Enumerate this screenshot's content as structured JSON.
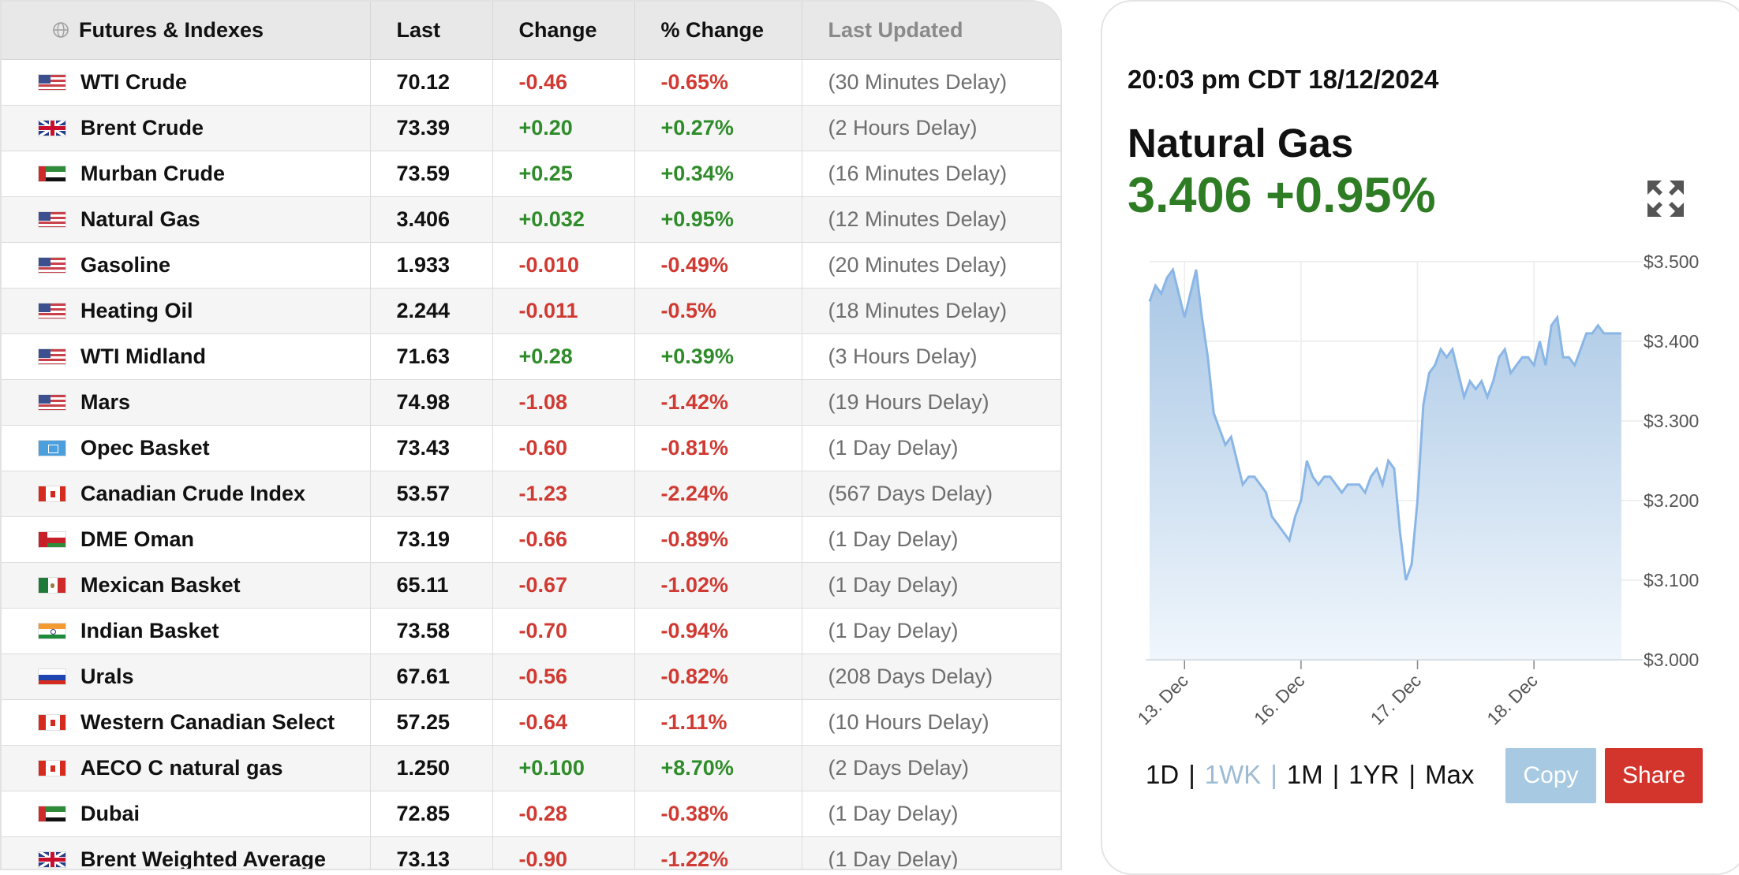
{
  "table": {
    "headers": [
      "Futures & Indexes",
      "Last",
      "Change",
      "% Change",
      "Last Updated"
    ],
    "rows": [
      {
        "flag": "us",
        "name": "WTI Crude",
        "last": "70.12",
        "change": "-0.46",
        "pct": "-0.65%",
        "updated": "(30 Minutes Delay)",
        "dir": "neg"
      },
      {
        "flag": "uk",
        "name": "Brent Crude",
        "last": "73.39",
        "change": "+0.20",
        "pct": "+0.27%",
        "updated": "(2 Hours Delay)",
        "dir": "pos"
      },
      {
        "flag": "ae",
        "name": "Murban Crude",
        "last": "73.59",
        "change": "+0.25",
        "pct": "+0.34%",
        "updated": "(16 Minutes Delay)",
        "dir": "pos"
      },
      {
        "flag": "us",
        "name": "Natural Gas",
        "last": "3.406",
        "change": "+0.032",
        "pct": "+0.95%",
        "updated": "(12 Minutes Delay)",
        "dir": "pos"
      },
      {
        "flag": "us",
        "name": "Gasoline",
        "last": "1.933",
        "change": "-0.010",
        "pct": "-0.49%",
        "updated": "(20 Minutes Delay)",
        "dir": "neg"
      },
      {
        "flag": "us",
        "name": "Heating Oil",
        "last": "2.244",
        "change": "-0.011",
        "pct": "-0.5%",
        "updated": "(18 Minutes Delay)",
        "dir": "neg"
      },
      {
        "flag": "us",
        "name": "WTI Midland",
        "last": "71.63",
        "change": "+0.28",
        "pct": "+0.39%",
        "updated": "(3 Hours Delay)",
        "dir": "pos"
      },
      {
        "flag": "us",
        "name": "Mars",
        "last": "74.98",
        "change": "-1.08",
        "pct": "-1.42%",
        "updated": "(19 Hours Delay)",
        "dir": "neg"
      },
      {
        "flag": "opec",
        "name": "Opec Basket",
        "last": "73.43",
        "change": "-0.60",
        "pct": "-0.81%",
        "updated": "(1 Day Delay)",
        "dir": "neg"
      },
      {
        "flag": "ca",
        "name": "Canadian Crude Index",
        "last": "53.57",
        "change": "-1.23",
        "pct": "-2.24%",
        "updated": "(567 Days Delay)",
        "dir": "neg"
      },
      {
        "flag": "om",
        "name": "DME Oman",
        "last": "73.19",
        "change": "-0.66",
        "pct": "-0.89%",
        "updated": "(1 Day Delay)",
        "dir": "neg"
      },
      {
        "flag": "mx",
        "name": "Mexican Basket",
        "last": "65.11",
        "change": "-0.67",
        "pct": "-1.02%",
        "updated": "(1 Day Delay)",
        "dir": "neg"
      },
      {
        "flag": "in",
        "name": "Indian Basket",
        "last": "73.58",
        "change": "-0.70",
        "pct": "-0.94%",
        "updated": "(1 Day Delay)",
        "dir": "neg"
      },
      {
        "flag": "ru",
        "name": "Urals",
        "last": "67.61",
        "change": "-0.56",
        "pct": "-0.82%",
        "updated": "(208 Days Delay)",
        "dir": "neg"
      },
      {
        "flag": "ca",
        "name": "Western Canadian Select",
        "last": "57.25",
        "change": "-0.64",
        "pct": "-1.11%",
        "updated": "(10 Hours Delay)",
        "dir": "neg"
      },
      {
        "flag": "ca",
        "name": "AECO C natural gas",
        "last": "1.250",
        "change": "+0.100",
        "pct": "+8.70%",
        "updated": "(2 Days Delay)",
        "dir": "pos"
      },
      {
        "flag": "ae",
        "name": "Dubai",
        "last": "72.85",
        "change": "-0.28",
        "pct": "-0.38%",
        "updated": "(1 Day Delay)",
        "dir": "neg"
      },
      {
        "flag": "uk",
        "name": "Brent Weighted Average",
        "last": "73.13",
        "change": "-0.90",
        "pct": "-1.22%",
        "updated": "(1 Day Delay)",
        "dir": "neg"
      }
    ]
  },
  "panel": {
    "datetime": "20:03 pm CDT 18/12/2024",
    "instrument": "Natural Gas",
    "quote": "3.406 +0.95%",
    "ranges": [
      {
        "label": "1D",
        "active": false
      },
      {
        "label": "1WK",
        "active": true
      },
      {
        "label": "1M",
        "active": false
      },
      {
        "label": "1YR",
        "active": false
      },
      {
        "label": "Max",
        "active": false
      }
    ],
    "copy_label": "Copy",
    "share_label": "Share"
  },
  "colors": {
    "positive": "#2f8c2a",
    "negative": "#d03a32",
    "line": "#8ab6e6",
    "fill_top": "#a9c7e5",
    "accent_share": "#d3342c",
    "accent_copy": "#a8c9e2"
  },
  "chart_data": {
    "type": "area",
    "ylim": [
      3.0,
      3.5
    ],
    "yticks": [
      "$3.500",
      "$3.400",
      "$3.300",
      "$3.200",
      "$3.100",
      "$3.000"
    ],
    "ytick_values": [
      3.5,
      3.4,
      3.3,
      3.2,
      3.1,
      3.0
    ],
    "xticks": [
      {
        "label": "13. Dec",
        "at": 0.3
      },
      {
        "label": "16. Dec",
        "at": 1.3
      },
      {
        "label": "17. Dec",
        "at": 2.3
      },
      {
        "label": "18. Dec",
        "at": 3.3
      }
    ],
    "x_domain": [
      0,
      4.2
    ],
    "grid": true,
    "series": [
      {
        "x": [
          0.0,
          0.05,
          0.1,
          0.15,
          0.2,
          0.25,
          0.3,
          0.35,
          0.4,
          0.45,
          0.5,
          0.55,
          0.6,
          0.65,
          0.7,
          0.75,
          0.8,
          0.85,
          0.9,
          0.95,
          1.0,
          1.05,
          1.1,
          1.15,
          1.2,
          1.25,
          1.3,
          1.35,
          1.4,
          1.45,
          1.5,
          1.55,
          1.6,
          1.65,
          1.7,
          1.75,
          1.8,
          1.85,
          1.9,
          1.95,
          2.0,
          2.05,
          2.1,
          2.15,
          2.2,
          2.25,
          2.3,
          2.35,
          2.4,
          2.45,
          2.5,
          2.55,
          2.6,
          2.65,
          2.7,
          2.75,
          2.8,
          2.85,
          2.9,
          2.95,
          3.0,
          3.05,
          3.1,
          3.15,
          3.2,
          3.25,
          3.3,
          3.35,
          3.4,
          3.45,
          3.5,
          3.55,
          3.6,
          3.65,
          3.7,
          3.75,
          3.8,
          3.85,
          3.9,
          3.95,
          4.0,
          4.05
        ],
        "y": [
          3.45,
          3.47,
          3.46,
          3.48,
          3.49,
          3.46,
          3.43,
          3.46,
          3.49,
          3.43,
          3.38,
          3.31,
          3.29,
          3.27,
          3.28,
          3.25,
          3.22,
          3.23,
          3.23,
          3.22,
          3.21,
          3.18,
          3.17,
          3.16,
          3.15,
          3.18,
          3.2,
          3.25,
          3.23,
          3.22,
          3.23,
          3.23,
          3.22,
          3.21,
          3.22,
          3.22,
          3.22,
          3.21,
          3.23,
          3.24,
          3.22,
          3.25,
          3.24,
          3.16,
          3.1,
          3.12,
          3.2,
          3.32,
          3.36,
          3.37,
          3.39,
          3.38,
          3.39,
          3.36,
          3.33,
          3.35,
          3.34,
          3.35,
          3.33,
          3.35,
          3.38,
          3.39,
          3.36,
          3.37,
          3.38,
          3.38,
          3.37,
          3.4,
          3.37,
          3.42,
          3.43,
          3.38,
          3.38,
          3.37,
          3.39,
          3.41,
          3.41,
          3.42,
          3.41,
          3.41,
          3.41,
          3.41
        ]
      }
    ]
  }
}
